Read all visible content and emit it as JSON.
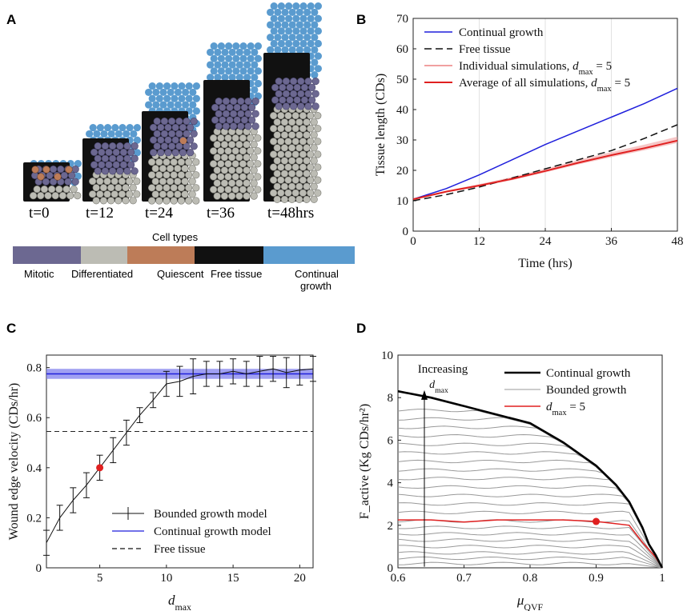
{
  "panel_a": {
    "label": "A",
    "time_labels": [
      "t=0",
      "t=12",
      "t=24",
      "t=36",
      "t=48hrs"
    ],
    "legend_title": "Cell types",
    "cell_types": [
      {
        "name": "Mitotic",
        "color": "#6c6891"
      },
      {
        "name": "Differentiated",
        "color": "#bcbcb4"
      },
      {
        "name": "Quiescent",
        "color": "#bd7c58"
      },
      {
        "name": "Free tissue",
        "color": "#111111"
      },
      {
        "name": "Continual growth",
        "name_line1": "Continual",
        "name_line2": "growth",
        "color": "#5a9bcf"
      }
    ]
  },
  "chart_data": [
    {
      "panel": "B",
      "type": "line",
      "xlabel": "Time (hrs)",
      "ylabel": "Tissue length (CDs)",
      "xlim": [
        0,
        48
      ],
      "ylim": [
        0,
        70
      ],
      "xticks": [
        0,
        12,
        24,
        36,
        48
      ],
      "yticks": [
        0,
        10,
        20,
        30,
        40,
        50,
        60,
        70
      ],
      "legend": [
        "Continual growth",
        "Free tissue",
        "Individual simulations, d_max = 5",
        "Average of all simulations, d_max = 5"
      ],
      "series": [
        {
          "name": "Continual growth",
          "color": "#1f1fdc",
          "x": [
            0,
            6,
            12,
            18,
            24,
            30,
            36,
            42,
            48
          ],
          "values": [
            10.5,
            14,
            18.5,
            23.5,
            28.5,
            33,
            37.5,
            42,
            47
          ]
        },
        {
          "name": "Free tissue",
          "color": "#111111",
          "dash": true,
          "x": [
            0,
            6,
            12,
            18,
            24,
            30,
            36,
            42,
            48
          ],
          "values": [
            10,
            12,
            14.5,
            17.5,
            20.5,
            23.5,
            26.5,
            30.5,
            35
          ]
        },
        {
          "name": "Average of all simulations",
          "color": "#e02020",
          "x": [
            0,
            6,
            12,
            18,
            24,
            30,
            36,
            42,
            48
          ],
          "values": [
            10.5,
            13,
            15,
            17.2,
            19.8,
            22.5,
            25,
            27.3,
            29.8
          ]
        }
      ]
    },
    {
      "panel": "C",
      "type": "line",
      "xlabel": "d_max",
      "ylabel": "Wound edge velocity (CDs/hr)",
      "xlim": [
        1,
        21
      ],
      "ylim": [
        0,
        0.85
      ],
      "xticks": [
        5,
        10,
        15,
        20
      ],
      "yticks": [
        0,
        0.2,
        0.4,
        0.6,
        0.8
      ],
      "legend": [
        "Bounded growth model",
        "Continual growth model",
        "Free tissue"
      ],
      "bounded": {
        "x": [
          1,
          2,
          3,
          4,
          5,
          6,
          7,
          8,
          9,
          10,
          11,
          12,
          13,
          14,
          15,
          16,
          17,
          18,
          19,
          20,
          21
        ],
        "values": [
          0.1,
          0.2,
          0.27,
          0.33,
          0.4,
          0.47,
          0.54,
          0.61,
          0.67,
          0.735,
          0.745,
          0.765,
          0.775,
          0.775,
          0.785,
          0.775,
          0.785,
          0.795,
          0.78,
          0.79,
          0.795
        ],
        "err": [
          0.05,
          0.05,
          0.05,
          0.05,
          0.05,
          0.05,
          0.05,
          0.03,
          0.03,
          0.05,
          0.06,
          0.07,
          0.05,
          0.05,
          0.05,
          0.05,
          0.06,
          0.05,
          0.06,
          0.06,
          0.05
        ]
      },
      "continual": {
        "value": 0.775,
        "band": [
          0.755,
          0.795
        ]
      },
      "free": {
        "value": 0.545
      },
      "highlight": {
        "x": 5,
        "y": 0.4
      }
    },
    {
      "panel": "D",
      "type": "line",
      "xlabel": "μ_QVF",
      "ylabel": "F_active (Kg CDs/hr²)",
      "xlim": [
        0.6,
        1
      ],
      "ylim": [
        0,
        10
      ],
      "xticks": [
        0.6,
        0.7,
        0.8,
        0.9,
        1
      ],
      "yticks": [
        0,
        2,
        4,
        6,
        8,
        10
      ],
      "legend": [
        "Continual growth",
        "Bounded growth",
        "d_max = 5"
      ],
      "annotation": "Increasing",
      "annotation_sub": "d_max",
      "continual": {
        "x": [
          0.6,
          0.65,
          0.7,
          0.75,
          0.8,
          0.85,
          0.9,
          0.93,
          0.95,
          0.97,
          0.98,
          0.99,
          1.0
        ],
        "values": [
          8.3,
          8.0,
          7.6,
          7.2,
          6.8,
          5.9,
          4.8,
          3.9,
          3.1,
          1.9,
          1.1,
          0.6,
          0.0
        ]
      },
      "bounded_levels": [
        0.2,
        0.45,
        0.7,
        1.0,
        1.3,
        1.6,
        1.9,
        2.2,
        2.6,
        3.0,
        3.4,
        3.8,
        4.2,
        4.6,
        5.0,
        5.4,
        5.8,
        6.2,
        6.6,
        7.0,
        7.4
      ],
      "dmax5": {
        "x": [
          0.6,
          0.65,
          0.7,
          0.75,
          0.8,
          0.85,
          0.9,
          0.95,
          0.97,
          0.99,
          1.0
        ],
        "values": [
          2.25,
          2.25,
          2.15,
          2.25,
          2.25,
          2.25,
          2.18,
          2.0,
          1.2,
          0.5,
          0.0
        ]
      },
      "highlight": {
        "x": 0.9,
        "y": 2.18
      }
    }
  ],
  "labels": {
    "b": "B",
    "c": "C",
    "d": "D"
  },
  "colors": {
    "blue": "#1f1fdc",
    "red": "#e02020",
    "pink": "#f0a0a0",
    "band": "#8080ee",
    "gray": "#999999"
  }
}
